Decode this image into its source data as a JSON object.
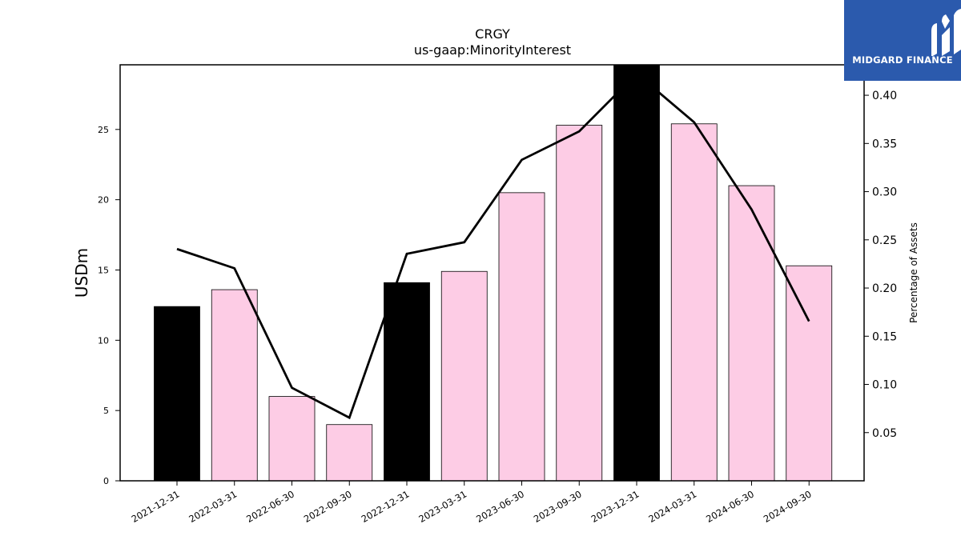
{
  "chart_data": {
    "type": "bar",
    "title": "CRGY",
    "subtitle": "us-gaap:MinorityInterest",
    "ylabel": "USDm",
    "y2label": "Percentage of Assets",
    "categories": [
      "2021-12-31",
      "2022-03-31",
      "2022-06-30",
      "2022-09-30",
      "2022-12-31",
      "2023-03-31",
      "2023-06-30",
      "2023-09-30",
      "2023-12-31",
      "2024-03-31",
      "2024-06-30",
      "2024-09-30"
    ],
    "series": [
      {
        "type": "bar",
        "values": [
          12.4,
          13.6,
          6.0,
          4.0,
          14.1,
          14.9,
          20.5,
          25.3,
          29.6,
          25.4,
          21.0,
          15.3
        ]
      },
      {
        "type": "line",
        "axis": "right",
        "values": [
          0.2405,
          0.2205,
          0.0965,
          0.0655,
          0.2355,
          0.2475,
          0.333,
          0.3625,
          0.4225,
          0.372,
          0.2815,
          0.1655
        ]
      }
    ],
    "bar_colors": [
      "#000000",
      "#fdcce5",
      "#fdcce5",
      "#fdcce5",
      "#000000",
      "#fdcce5",
      "#fdcce5",
      "#fdcce5",
      "#000000",
      "#fdcce5",
      "#fdcce5",
      "#fdcce5"
    ],
    "line_color": "#000000",
    "ylim": [
      0,
      29.6
    ],
    "y2lim": [
      0,
      0.4316
    ],
    "yticks": [
      0,
      5,
      10,
      15,
      20,
      25
    ],
    "y2ticks": [
      0.05,
      0.1,
      0.15,
      0.2,
      0.25,
      0.3,
      0.35,
      0.4
    ],
    "y2tick_labels": [
      "0.05",
      "0.10",
      "0.15",
      "0.20",
      "0.25",
      "0.30",
      "0.35",
      "0.40"
    ],
    "grid": false
  },
  "logo": {
    "text": "MIDGARD FINANCE",
    "color": "#2b5aad"
  }
}
